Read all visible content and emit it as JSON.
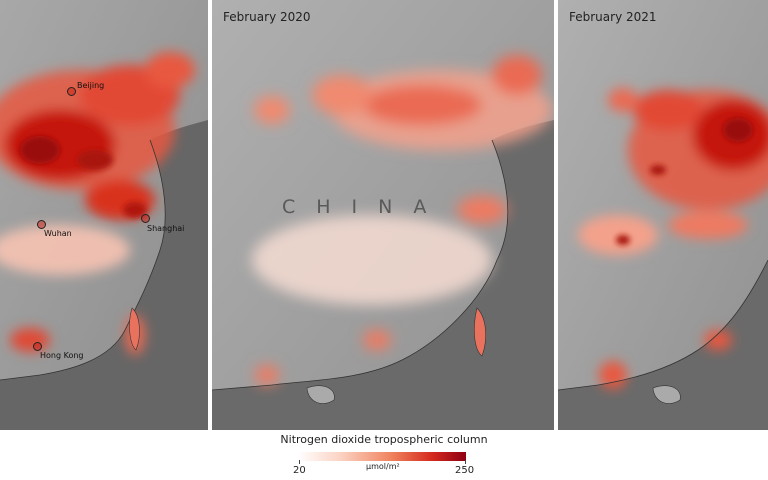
{
  "panels": [
    {
      "title": ""
    },
    {
      "title": "February 2020",
      "country_label": "CHINA"
    },
    {
      "title": "February 2021"
    }
  ],
  "cities": {
    "beijing": "Beijing",
    "wuhan": "Wuhan",
    "shanghai": "Shanghai",
    "hong_kong": "Hong Kong"
  },
  "legend": {
    "title": "Nitrogen dioxide tropospheric column",
    "unit": "µmol/m²",
    "min": "20",
    "max": "250",
    "colors": [
      "#ffffff",
      "#fbd3c4",
      "#f0855f",
      "#d42a1e",
      "#8e0012"
    ]
  },
  "colors": {
    "land": "#9a9a9a",
    "sea": "#5c5c5c",
    "high_no2": "#c8160f"
  }
}
